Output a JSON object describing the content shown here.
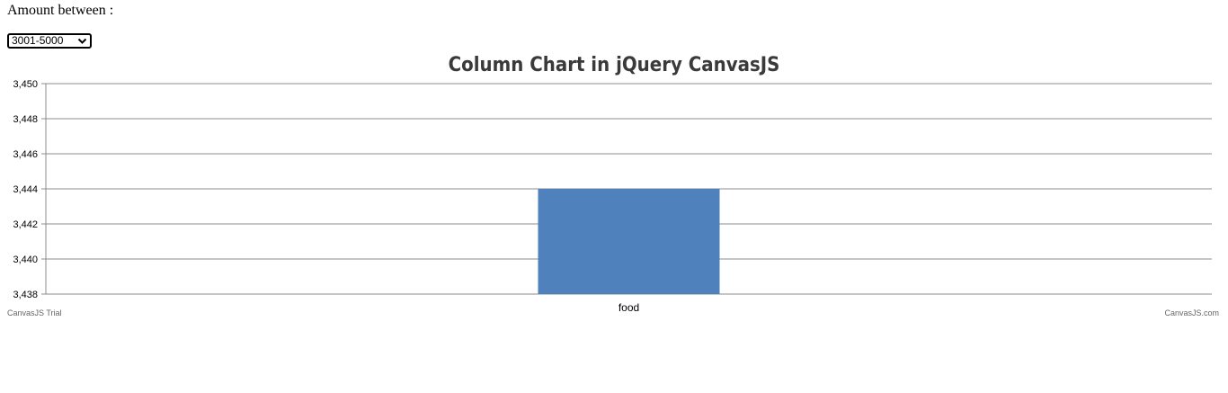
{
  "filter": {
    "label": "Amount between :",
    "selected": "3001-5000"
  },
  "chart_data": {
    "type": "bar",
    "title": "Column Chart in jQuery CanvasJS",
    "categories": [
      "food"
    ],
    "values": [
      3444
    ],
    "ylim": [
      3438,
      3450
    ],
    "yticks": [
      3438,
      3440,
      3442,
      3444,
      3446,
      3448,
      3450
    ],
    "ytick_labels": [
      "3,438",
      "3,440",
      "3,442",
      "3,444",
      "3,446",
      "3,448",
      "3,450"
    ],
    "xlabel": "",
    "ylabel": "",
    "grid": true,
    "bar_color": "#4F81BC"
  },
  "watermarks": {
    "left": "CanvasJS Trial",
    "right": "CanvasJS.com"
  }
}
